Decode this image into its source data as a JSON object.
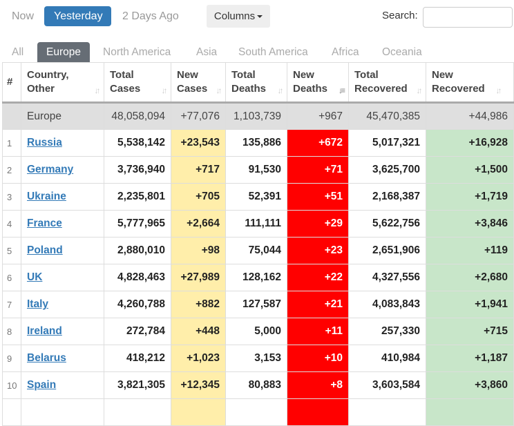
{
  "toolbar": {
    "now": "Now",
    "yesterday": "Yesterday",
    "two_days": "2 Days Ago",
    "columns": "Columns",
    "search_label": "Search:",
    "search_value": ""
  },
  "tabs": [
    "All",
    "Europe",
    "North America",
    "Asia",
    "South America",
    "Africa",
    "Oceania"
  ],
  "active_tab": "Europe",
  "colors": {
    "new_cases": "#ffeeaa",
    "new_deaths": "#ff0000",
    "new_recovered": "#c8e6c9",
    "active_tab": "#666d75",
    "active_button": "#337ab7"
  },
  "headers": {
    "num": "#",
    "country": [
      "Country,",
      "Other"
    ],
    "total_cases": [
      "Total",
      "Cases"
    ],
    "new_cases": [
      "New",
      "Cases"
    ],
    "total_deaths": [
      "Total",
      "Deaths"
    ],
    "new_deaths": [
      "New",
      "Deaths"
    ],
    "total_recovered": [
      "Total",
      "Recovered"
    ],
    "new_recovered": [
      "New",
      "Recovered"
    ]
  },
  "sorted_column": "new_deaths",
  "total": {
    "name": "Europe",
    "total_cases": "48,058,094",
    "new_cases": "+77,076",
    "total_deaths": "1,103,739",
    "new_deaths": "+967",
    "total_recovered": "45,470,385",
    "new_recovered": "+44,986"
  },
  "rows": [
    {
      "n": "1",
      "name": "Russia",
      "tc": "5,538,142",
      "nc": "+23,543",
      "td": "135,886",
      "nd": "+672",
      "tr": "5,017,321",
      "nr": "+16,928"
    },
    {
      "n": "2",
      "name": "Germany",
      "tc": "3,736,940",
      "nc": "+717",
      "td": "91,530",
      "nd": "+71",
      "tr": "3,625,700",
      "nr": "+1,500"
    },
    {
      "n": "3",
      "name": "Ukraine",
      "tc": "2,235,801",
      "nc": "+705",
      "td": "52,391",
      "nd": "+51",
      "tr": "2,168,387",
      "nr": "+1,719"
    },
    {
      "n": "4",
      "name": "France",
      "tc": "5,777,965",
      "nc": "+2,664",
      "td": "111,111",
      "nd": "+29",
      "tr": "5,622,756",
      "nr": "+3,846"
    },
    {
      "n": "5",
      "name": "Poland",
      "tc": "2,880,010",
      "nc": "+98",
      "td": "75,044",
      "nd": "+23",
      "tr": "2,651,906",
      "nr": "+119"
    },
    {
      "n": "6",
      "name": "UK",
      "tc": "4,828,463",
      "nc": "+27,989",
      "td": "128,162",
      "nd": "+22",
      "tr": "4,327,556",
      "nr": "+2,680"
    },
    {
      "n": "7",
      "name": "Italy",
      "tc": "4,260,788",
      "nc": "+882",
      "td": "127,587",
      "nd": "+21",
      "tr": "4,083,843",
      "nr": "+1,941"
    },
    {
      "n": "8",
      "name": "Ireland",
      "tc": "272,784",
      "nc": "+448",
      "td": "5,000",
      "nd": "+11",
      "tr": "257,330",
      "nr": "+715"
    },
    {
      "n": "9",
      "name": "Belarus",
      "tc": "418,212",
      "nc": "+1,023",
      "td": "3,153",
      "nd": "+10",
      "tr": "410,984",
      "nr": "+1,187"
    },
    {
      "n": "10",
      "name": "Spain",
      "tc": "3,821,305",
      "nc": "+12,345",
      "td": "80,883",
      "nd": "+8",
      "tr": "3,603,584",
      "nr": "+3,860"
    },
    {
      "n": "",
      "name": "",
      "tc": "",
      "nc": "",
      "td": "",
      "nd": "",
      "tr": "",
      "nr": ""
    }
  ]
}
